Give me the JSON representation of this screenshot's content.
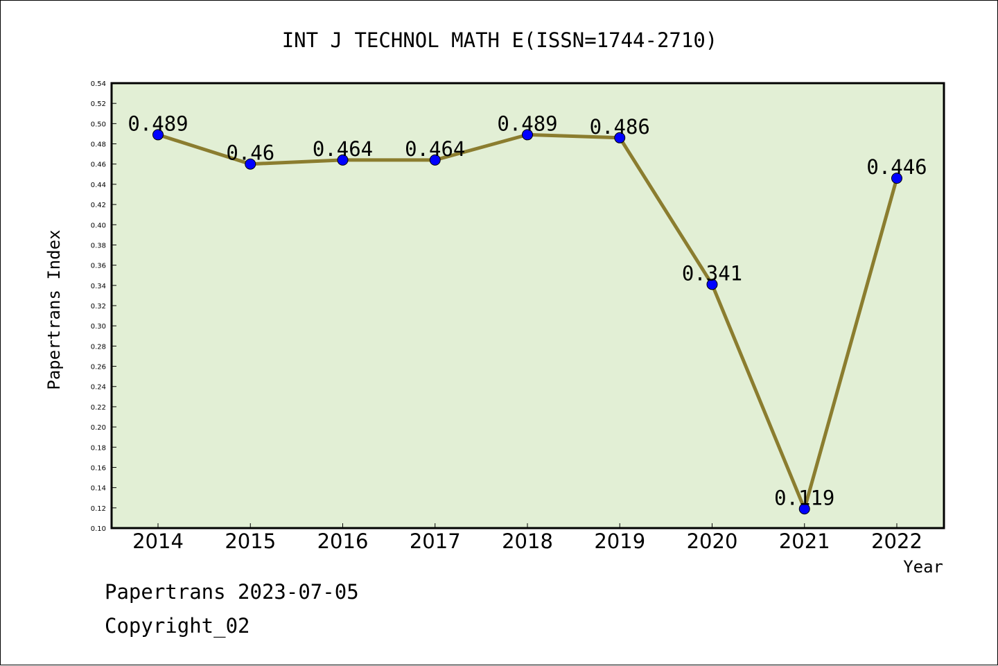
{
  "chart_data": {
    "type": "line",
    "title": "INT J TECHNOL MATH E(ISSN=1744-2710)",
    "xlabel": "Year",
    "ylabel": "Papertrans Index",
    "categories": [
      "2014",
      "2015",
      "2016",
      "2017",
      "2018",
      "2019",
      "2020",
      "2021",
      "2022"
    ],
    "series": [
      {
        "values": [
          0.489,
          0.46,
          0.464,
          0.464,
          0.489,
          0.486,
          0.341,
          0.119,
          0.446
        ]
      }
    ],
    "data_labels": [
      "0.489",
      "0.46",
      "0.464",
      "0.464",
      "0.489",
      "0.486",
      "0.341",
      "0.119",
      "0.446"
    ],
    "ylim": [
      0.1,
      0.54
    ],
    "yticks": [
      "0.10",
      "0.12",
      "0.14",
      "0.16",
      "0.18",
      "0.20",
      "0.22",
      "0.24",
      "0.26",
      "0.28",
      "0.30",
      "0.32",
      "0.34",
      "0.36",
      "0.38",
      "0.40",
      "0.42",
      "0.44",
      "0.46",
      "0.48",
      "0.50",
      "0.52",
      "0.54"
    ],
    "grid": false,
    "colors": {
      "plot_bg": "#e2efd5",
      "line": "#8b7d2f",
      "marker": "#0000ff"
    }
  },
  "footer": {
    "source_line": "Papertrans 2023-07-05",
    "copyright_line": "Copyright_02"
  }
}
